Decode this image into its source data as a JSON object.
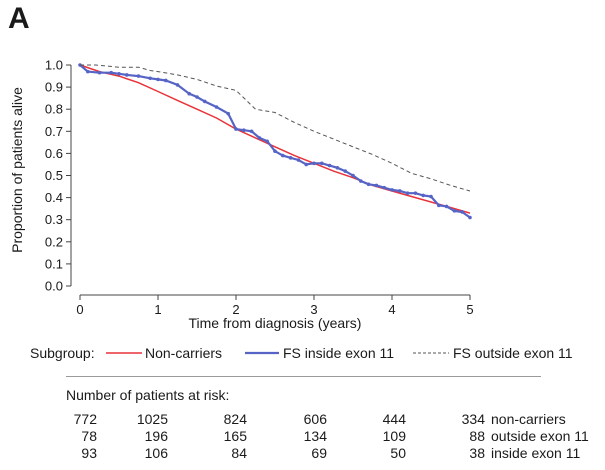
{
  "panel_label": "A",
  "chart_data": {
    "type": "line",
    "xlabel": "Time from diagnosis (years)",
    "ylabel": "Proportion of patients alive",
    "xlim": [
      0,
      5
    ],
    "ylim": [
      0,
      1.0
    ],
    "x_ticks": [
      0,
      1,
      2,
      3,
      4,
      5
    ],
    "y_ticks": [
      0.0,
      0.1,
      0.2,
      0.3,
      0.4,
      0.5,
      0.6,
      0.7,
      0.8,
      0.9,
      1.0
    ],
    "x_tick_labels": [
      "0",
      "1",
      "2",
      "3",
      "4",
      "5"
    ],
    "y_tick_labels": [
      "0.0",
      "0.1",
      "0.2",
      "0.3",
      "0.4",
      "0.5",
      "0.6",
      "0.7",
      "0.8",
      "0.9",
      "1.0"
    ],
    "grid": false,
    "series": [
      {
        "name": "Non-carriers",
        "color": "#e8333a",
        "style": "solid",
        "x": [
          0,
          0.25,
          0.5,
          0.75,
          1.0,
          1.25,
          1.5,
          1.75,
          2.0,
          2.25,
          2.5,
          2.75,
          3.0,
          3.25,
          3.5,
          3.75,
          4.0,
          4.25,
          4.5,
          4.75,
          5.0
        ],
        "y": [
          1.0,
          0.97,
          0.95,
          0.92,
          0.88,
          0.84,
          0.8,
          0.76,
          0.71,
          0.67,
          0.63,
          0.59,
          0.555,
          0.52,
          0.49,
          0.455,
          0.43,
          0.405,
          0.38,
          0.355,
          0.33
        ]
      },
      {
        "name": "FS inside exon 11",
        "color": "#5664c6",
        "style": "markers",
        "x": [
          0,
          0.1,
          0.25,
          0.4,
          0.5,
          0.6,
          0.75,
          0.9,
          1.0,
          1.1,
          1.25,
          1.4,
          1.5,
          1.6,
          1.75,
          1.9,
          2.0,
          2.1,
          2.2,
          2.3,
          2.4,
          2.5,
          2.6,
          2.7,
          2.8,
          2.9,
          3.0,
          3.1,
          3.2,
          3.3,
          3.4,
          3.5,
          3.6,
          3.7,
          3.8,
          3.9,
          4.0,
          4.1,
          4.2,
          4.3,
          4.4,
          4.5,
          4.6,
          4.7,
          4.8,
          4.9,
          5.0
        ],
        "y": [
          1.0,
          0.97,
          0.965,
          0.965,
          0.96,
          0.955,
          0.95,
          0.94,
          0.935,
          0.93,
          0.91,
          0.87,
          0.855,
          0.835,
          0.81,
          0.78,
          0.71,
          0.705,
          0.7,
          0.67,
          0.655,
          0.61,
          0.59,
          0.58,
          0.57,
          0.55,
          0.555,
          0.555,
          0.545,
          0.535,
          0.52,
          0.5,
          0.475,
          0.46,
          0.455,
          0.445,
          0.435,
          0.43,
          0.42,
          0.42,
          0.41,
          0.405,
          0.365,
          0.36,
          0.34,
          0.335,
          0.31
        ]
      },
      {
        "name": "FS outside exon 11",
        "color": "#555555",
        "style": "dashed",
        "x": [
          0,
          0.2,
          0.5,
          0.75,
          0.9,
          1.0,
          1.25,
          1.5,
          1.75,
          2.0,
          2.25,
          2.5,
          2.75,
          3.0,
          3.25,
          3.5,
          3.75,
          4.0,
          4.25,
          4.5,
          4.75,
          5.0
        ],
        "y": [
          1.0,
          1.0,
          0.99,
          0.99,
          0.975,
          0.97,
          0.955,
          0.935,
          0.905,
          0.885,
          0.8,
          0.785,
          0.74,
          0.7,
          0.665,
          0.63,
          0.595,
          0.555,
          0.51,
          0.485,
          0.455,
          0.43
        ]
      }
    ]
  },
  "legend": {
    "title": "Subgroup:",
    "items": [
      "Non-carriers",
      "FS inside exon 11",
      "FS outside exon 11"
    ]
  },
  "risk_table": {
    "title": "Number of patients at risk:",
    "rows": [
      {
        "label": "non-carriers",
        "values": [
          "772",
          "1025",
          "824",
          "606",
          "444",
          "334"
        ]
      },
      {
        "label": "outside exon 11",
        "values": [
          "78",
          "196",
          "165",
          "134",
          "109",
          "88"
        ]
      },
      {
        "label": "inside exon 11",
        "values": [
          "93",
          "106",
          "84",
          "69",
          "50",
          "38"
        ]
      }
    ]
  }
}
